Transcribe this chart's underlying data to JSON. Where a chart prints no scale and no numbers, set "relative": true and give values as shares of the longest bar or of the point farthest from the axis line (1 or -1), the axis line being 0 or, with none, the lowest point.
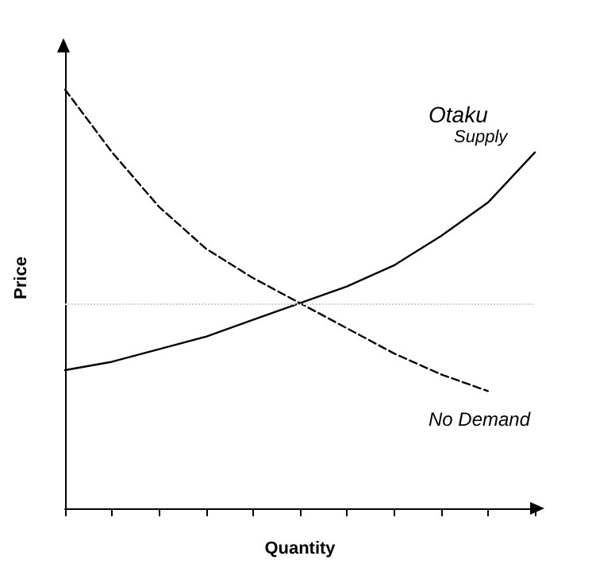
{
  "chart_data": {
    "type": "line",
    "relative": true,
    "xlabel": "Quantity",
    "ylabel": "Price",
    "grid": false,
    "marker": "none",
    "categories": [
      null,
      null,
      null,
      null,
      null,
      null,
      null,
      null,
      null,
      null,
      null
    ],
    "series": [
      {
        "color": "#000000",
        "line_style": "solid",
        "values": [
          0.33,
          0.35,
          0.38,
          0.41,
          0.45,
          0.49,
          0.53,
          0.58,
          0.65,
          0.73,
          0.85
        ]
      },
      {
        "color": "#000000",
        "line_style": "dashed",
        "values": [
          1,
          0.85,
          0.72,
          0.62,
          0.55,
          0.49,
          0.43,
          0.37,
          0.32,
          0.28,
          null
        ]
      }
    ],
    "ref_lines": [
      {
        "axis": "y",
        "value": 0.49,
        "color": "#d0d0d0",
        "line_style": "dotted"
      }
    ],
    "annotations": [
      "Otaku",
      "Supply",
      "No Demand"
    ]
  }
}
